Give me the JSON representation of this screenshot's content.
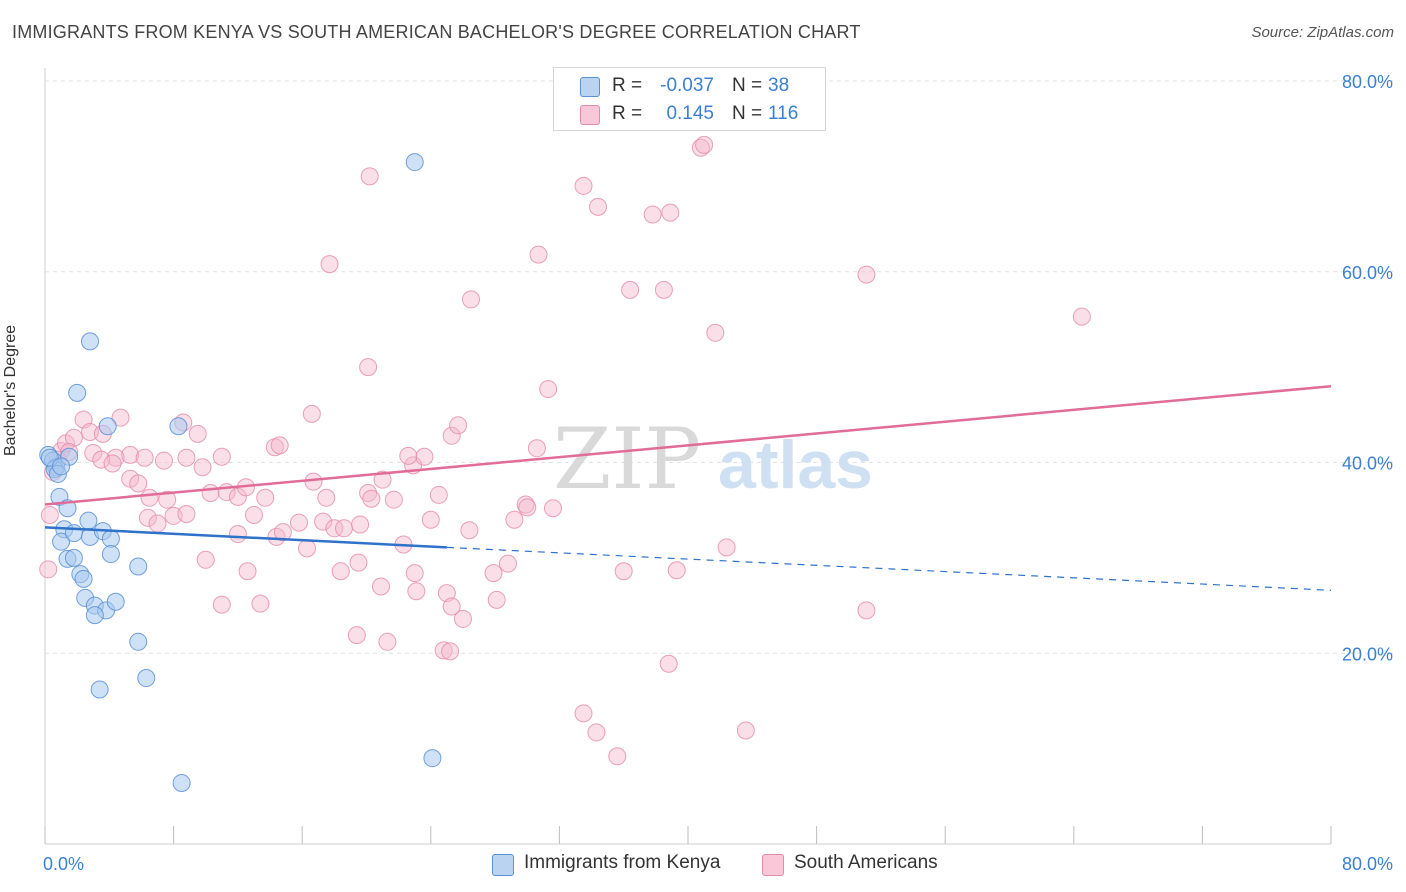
{
  "header": {
    "title": "IMMIGRANTS FROM KENYA VS SOUTH AMERICAN BACHELOR'S DEGREE CORRELATION CHART",
    "source": "Source: ZipAtlas.com"
  },
  "watermark": {
    "part1": "ZIP",
    "part2": "atlas"
  },
  "legend_top": {
    "rows": [
      {
        "r_label": "R =",
        "r_value": "-0.037",
        "n_label": "N =",
        "n_value": "38"
      },
      {
        "r_label": "R =",
        "r_value": "0.145",
        "n_label": "N =",
        "n_value": "116"
      }
    ]
  },
  "legend_bottom": {
    "kenya": "Immigrants from Kenya",
    "south": "South Americans"
  },
  "colors": {
    "kenya_fill": "#a8c8ee",
    "kenya_stroke": "#5b8fd6",
    "kenya_line": "#2f72c9",
    "south_fill": "#f4b9cd",
    "south_stroke": "#e58aab",
    "south_line": "#e06c97",
    "tick_text": "#3b7fd4"
  },
  "chart_data": {
    "type": "scatter",
    "title": "IMMIGRANTS FROM KENYA VS SOUTH AMERICAN BACHELOR'S DEGREE CORRELATION CHART",
    "xlabel": "",
    "ylabel": "Bachelor's Degree",
    "xlim": [
      0,
      80
    ],
    "ylim": [
      0,
      80
    ],
    "x_tick_labels": [
      "0.0%",
      "80.0%"
    ],
    "y_ticks": [
      20,
      40,
      60,
      80
    ],
    "y_tick_labels": [
      "20.0%",
      "40.0%",
      "60.0%",
      "80.0%"
    ],
    "grid": true,
    "legend_position": "top-center",
    "series": [
      {
        "name": "Immigrants from Kenya",
        "r": -0.037,
        "n": 38,
        "trend": {
          "solid_x": [
            0,
            25
          ],
          "solid_y": [
            33.2,
            31.1
          ],
          "dashed_x": [
            25,
            80
          ],
          "dashed_y": [
            31.1,
            26.6
          ]
        },
        "points": [
          [
            0.2,
            40.8
          ],
          [
            0.5,
            40.2
          ],
          [
            0.7,
            39.5
          ],
          [
            0.6,
            39.3
          ],
          [
            0.8,
            38.8
          ],
          [
            1.5,
            40.6
          ],
          [
            0.9,
            36.4
          ],
          [
            1.4,
            35.2
          ],
          [
            1.2,
            33.0
          ],
          [
            1.0,
            31.7
          ],
          [
            1.8,
            32.6
          ],
          [
            2.7,
            33.9
          ],
          [
            2.8,
            32.2
          ],
          [
            3.6,
            32.8
          ],
          [
            4.1,
            32.0
          ],
          [
            4.1,
            30.4
          ],
          [
            1.4,
            29.9
          ],
          [
            1.8,
            30.0
          ],
          [
            2.2,
            28.3
          ],
          [
            2.4,
            27.8
          ],
          [
            2.5,
            25.8
          ],
          [
            3.1,
            25.0
          ],
          [
            3.8,
            24.5
          ],
          [
            3.1,
            24.0
          ],
          [
            4.4,
            25.4
          ],
          [
            5.8,
            29.1
          ],
          [
            5.8,
            21.2
          ],
          [
            6.3,
            17.4
          ],
          [
            3.4,
            16.2
          ],
          [
            8.3,
            43.8
          ],
          [
            3.9,
            43.8
          ],
          [
            2.0,
            47.3
          ],
          [
            2.8,
            52.7
          ],
          [
            23.0,
            71.5
          ],
          [
            24.1,
            9.0
          ],
          [
            8.5,
            6.4
          ],
          [
            0.3,
            40.5
          ],
          [
            1.0,
            39.6
          ]
        ]
      },
      {
        "name": "South Americans",
        "r": 0.145,
        "n": 116,
        "trend": {
          "x": [
            0,
            80
          ],
          "y": [
            35.6,
            48.0
          ]
        },
        "points": [
          [
            0.2,
            28.8
          ],
          [
            0.3,
            34.5
          ],
          [
            0.5,
            39.0
          ],
          [
            1.0,
            41.2
          ],
          [
            1.3,
            42.0
          ],
          [
            1.8,
            42.6
          ],
          [
            2.4,
            44.5
          ],
          [
            2.8,
            43.2
          ],
          [
            3.6,
            43.0
          ],
          [
            4.7,
            44.7
          ],
          [
            3.0,
            41.0
          ],
          [
            4.4,
            40.5
          ],
          [
            5.3,
            40.8
          ],
          [
            6.2,
            40.5
          ],
          [
            7.4,
            40.2
          ],
          [
            8.6,
            44.2
          ],
          [
            9.5,
            43.0
          ],
          [
            11.0,
            40.6
          ],
          [
            8.8,
            40.5
          ],
          [
            9.8,
            39.5
          ],
          [
            5.3,
            38.3
          ],
          [
            5.8,
            37.8
          ],
          [
            6.5,
            36.3
          ],
          [
            7.6,
            36.1
          ],
          [
            6.4,
            34.2
          ],
          [
            7.0,
            33.6
          ],
          [
            8.0,
            34.4
          ],
          [
            8.8,
            34.6
          ],
          [
            10.3,
            36.8
          ],
          [
            11.3,
            36.9
          ],
          [
            12.0,
            36.4
          ],
          [
            12.5,
            37.4
          ],
          [
            13.0,
            34.5
          ],
          [
            13.7,
            36.3
          ],
          [
            12.0,
            32.5
          ],
          [
            14.4,
            32.2
          ],
          [
            14.8,
            32.7
          ],
          [
            15.8,
            33.7
          ],
          [
            16.3,
            31.0
          ],
          [
            16.7,
            38.0
          ],
          [
            17.5,
            36.3
          ],
          [
            17.3,
            33.8
          ],
          [
            18.0,
            33.1
          ],
          [
            18.4,
            28.6
          ],
          [
            18.6,
            33.1
          ],
          [
            19.5,
            29.5
          ],
          [
            20.1,
            36.8
          ],
          [
            20.3,
            36.2
          ],
          [
            21.0,
            38.2
          ],
          [
            21.7,
            36.1
          ],
          [
            22.3,
            31.4
          ],
          [
            23.0,
            28.4
          ],
          [
            22.9,
            39.7
          ],
          [
            23.6,
            40.6
          ],
          [
            22.6,
            40.7
          ],
          [
            24.0,
            34.0
          ],
          [
            24.5,
            36.6
          ],
          [
            25.0,
            26.3
          ],
          [
            25.3,
            24.9
          ],
          [
            25.3,
            42.8
          ],
          [
            25.7,
            43.9
          ],
          [
            26.4,
            32.9
          ],
          [
            27.9,
            28.4
          ],
          [
            28.1,
            25.6
          ],
          [
            28.8,
            29.4
          ],
          [
            29.2,
            34.0
          ],
          [
            29.9,
            35.6
          ],
          [
            30.0,
            35.3
          ],
          [
            30.6,
            41.5
          ],
          [
            31.6,
            35.2
          ],
          [
            31.3,
            47.7
          ],
          [
            20.1,
            50.0
          ],
          [
            19.6,
            33.5
          ],
          [
            20.9,
            27.0
          ],
          [
            21.3,
            21.2
          ],
          [
            23.1,
            26.5
          ],
          [
            24.8,
            20.3
          ],
          [
            25.2,
            20.2
          ],
          [
            26.0,
            23.6
          ],
          [
            19.4,
            21.9
          ],
          [
            16.6,
            45.1
          ],
          [
            17.7,
            60.8
          ],
          [
            20.2,
            70.0
          ],
          [
            26.5,
            57.1
          ],
          [
            30.7,
            61.8
          ],
          [
            32.8,
            77.8
          ],
          [
            33.5,
            69.0
          ],
          [
            34.4,
            66.8
          ],
          [
            36.4,
            58.1
          ],
          [
            37.8,
            66.0
          ],
          [
            38.5,
            58.1
          ],
          [
            38.9,
            66.2
          ],
          [
            40.8,
            73.0
          ],
          [
            41.0,
            73.3
          ],
          [
            41.7,
            53.6
          ],
          [
            42.4,
            31.1
          ],
          [
            39.3,
            28.7
          ],
          [
            38.8,
            18.9
          ],
          [
            43.6,
            11.9
          ],
          [
            35.6,
            9.2
          ],
          [
            36.0,
            28.6
          ],
          [
            33.5,
            13.7
          ],
          [
            34.3,
            11.7
          ],
          [
            51.1,
            59.7
          ],
          [
            51.1,
            24.5
          ],
          [
            64.5,
            55.3
          ],
          [
            0.8,
            40.3
          ],
          [
            1.5,
            41.1
          ],
          [
            3.5,
            40.3
          ],
          [
            4.2,
            39.9
          ],
          [
            14.3,
            41.6
          ],
          [
            14.6,
            41.8
          ],
          [
            10.0,
            29.8
          ],
          [
            11.0,
            25.1
          ],
          [
            12.6,
            28.6
          ],
          [
            13.4,
            25.2
          ]
        ]
      }
    ]
  }
}
